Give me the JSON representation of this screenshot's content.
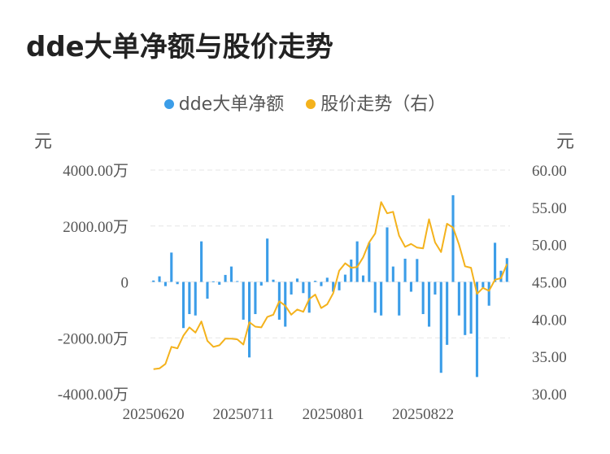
{
  "title": "dde大单净额与股价走势",
  "legend": [
    {
      "label": "dde大单净额",
      "color": "#3b9de8"
    },
    {
      "label": "股价走势（右）",
      "color": "#f4b21c"
    }
  ],
  "left_unit": "元",
  "right_unit": "元",
  "chart_data": {
    "type": "bar+line",
    "x_tick_labels": [
      "20250620",
      "20250711",
      "20250801",
      "20250822"
    ],
    "x_tick_index": [
      0,
      15,
      30,
      45
    ],
    "left_axis": {
      "ylim": [
        -4000,
        4000
      ],
      "ticks": [
        4000,
        2000,
        0,
        -2000,
        -4000
      ],
      "tick_labels": [
        "4000.00万",
        "2000.00万",
        "0",
        "-2000.00万",
        "-4000.00万"
      ]
    },
    "right_axis": {
      "ylim": [
        30,
        60
      ],
      "ticks": [
        60,
        55,
        50,
        45,
        40,
        35,
        30
      ],
      "tick_labels": [
        "60.00",
        "55.00",
        "50.00",
        "45.00",
        "40.00",
        "35.00",
        "30.00"
      ]
    },
    "grid": true,
    "series": [
      {
        "name": "dde大单净额",
        "type": "bar",
        "color": "#3b9de8",
        "values": [
          50,
          200,
          -150,
          1050,
          -80,
          -1650,
          -1150,
          -1200,
          1450,
          -600,
          20,
          -100,
          250,
          550,
          30,
          -1350,
          -2700,
          -1150,
          -130,
          1550,
          80,
          -1350,
          -1600,
          -450,
          120,
          -400,
          -1100,
          40,
          -150,
          150,
          -350,
          -300,
          260,
          800,
          1450,
          230,
          1400,
          -1100,
          -1200,
          1950,
          550,
          -1200,
          830,
          -350,
          820,
          -1150,
          -1600,
          -450,
          -3250,
          -2250,
          3100,
          -1200,
          -1900,
          -1850,
          -3400,
          -200,
          -850,
          1400,
          400,
          850
        ]
      },
      {
        "name": "股价走势（右）",
        "type": "line",
        "color": "#f4b21c",
        "values": [
          33.3,
          33.4,
          34.0,
          36.3,
          36.1,
          37.8,
          38.9,
          38.2,
          39.7,
          37.1,
          36.3,
          36.5,
          37.4,
          37.4,
          37.3,
          36.6,
          39.6,
          39.0,
          38.9,
          40.3,
          40.6,
          42.4,
          41.8,
          40.6,
          41.3,
          41.0,
          42.7,
          43.3,
          41.5,
          42.0,
          43.5,
          46.5,
          47.5,
          46.9,
          47.0,
          48.3,
          50.3,
          51.5,
          55.7,
          54.2,
          54.4,
          51.2,
          49.7,
          50.1,
          49.6,
          49.5,
          53.4,
          50.3,
          49.0,
          52.8,
          52.3,
          50.0,
          47.1,
          46.9,
          43.4,
          44.2,
          43.8,
          45.3,
          45.5,
          47.4
        ]
      }
    ]
  }
}
